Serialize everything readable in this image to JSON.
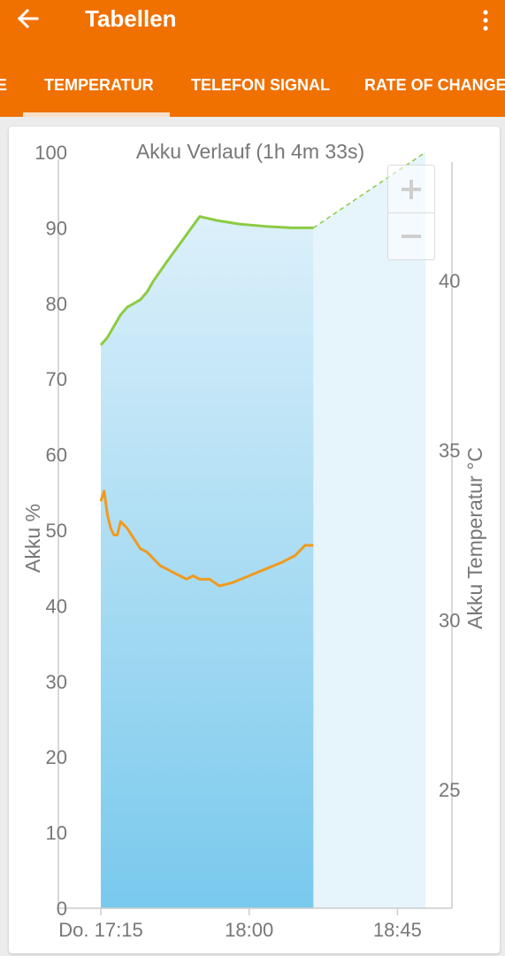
{
  "header": {
    "title": "Tabellen",
    "back_icon": "arrow-left-icon",
    "menu_icon": "more-vert-icon",
    "color": "#f07000"
  },
  "tabs": [
    {
      "label": "E"
    },
    {
      "label": "TEMPERATUR",
      "selected": true
    },
    {
      "label": "TELEFON SIGNAL"
    },
    {
      "label": "RATE OF CHANGE"
    }
  ],
  "zoom": {
    "in_icon": "plus-icon",
    "out_icon": "minus-icon"
  },
  "chart_data": {
    "type": "line",
    "title": "Akku Verlauf (1h 4m 33s)",
    "ylabel": "Akku %",
    "y2label": "Akku Temperatur °C",
    "ylim": [
      0,
      100
    ],
    "y2lim": [
      21.5,
      43.5
    ],
    "y_ticks": [
      "100",
      "90",
      "80",
      "70",
      "60",
      "50",
      "40",
      "30",
      "20",
      "10",
      "0"
    ],
    "y2_ticks": [
      "40",
      "35",
      "30",
      "25"
    ],
    "x_range_min": [
      0,
      95
    ],
    "x_ticks": [
      {
        "label": "Do. 17:15",
        "min": 0
      },
      {
        "label": "18:00",
        "min": 45
      },
      {
        "label": "18:45",
        "min": 90
      }
    ],
    "shade_until_min": 64.5,
    "projection_until_min": 98.5,
    "colors": {
      "battery": "#8ccb43",
      "temperature": "#f09a1e",
      "fill": "#79c9ed",
      "projection_fill": "#e6f4fc"
    },
    "series": [
      {
        "key": "battery",
        "values": [
          [
            0,
            74.5
          ],
          [
            1,
            75
          ],
          [
            2,
            75.5
          ],
          [
            4,
            77
          ],
          [
            6,
            78.5
          ],
          [
            8,
            79.5
          ],
          [
            10,
            80
          ],
          [
            12,
            80.5
          ],
          [
            14,
            81.5
          ],
          [
            16,
            83
          ],
          [
            20,
            85.5
          ],
          [
            25,
            88.5
          ],
          [
            30,
            91.5
          ],
          [
            35,
            91
          ],
          [
            42,
            90.5
          ],
          [
            50,
            90.2
          ],
          [
            58,
            90
          ],
          [
            64.5,
            90
          ]
        ]
      },
      {
        "key": "battery_projection",
        "values": [
          [
            64.5,
            90
          ],
          [
            98.5,
            100
          ]
        ]
      },
      {
        "key": "temperature",
        "values": [
          [
            0,
            33.5
          ],
          [
            1,
            33.8
          ],
          [
            2,
            33.1
          ],
          [
            3,
            32.7
          ],
          [
            4,
            32.5
          ],
          [
            5,
            32.5
          ],
          [
            6,
            32.9
          ],
          [
            8,
            32.7
          ],
          [
            10,
            32.4
          ],
          [
            12,
            32.1
          ],
          [
            14,
            32
          ],
          [
            16,
            31.8
          ],
          [
            18,
            31.6
          ],
          [
            20,
            31.5
          ],
          [
            22,
            31.4
          ],
          [
            24,
            31.3
          ],
          [
            26,
            31.2
          ],
          [
            28,
            31.3
          ],
          [
            30,
            31.2
          ],
          [
            33,
            31.2
          ],
          [
            36,
            31.0
          ],
          [
            40,
            31.1
          ],
          [
            45,
            31.3
          ],
          [
            50,
            31.5
          ],
          [
            55,
            31.7
          ],
          [
            59,
            31.9
          ],
          [
            61,
            32.1
          ],
          [
            62,
            32.2
          ],
          [
            64.5,
            32.2
          ]
        ]
      }
    ]
  }
}
